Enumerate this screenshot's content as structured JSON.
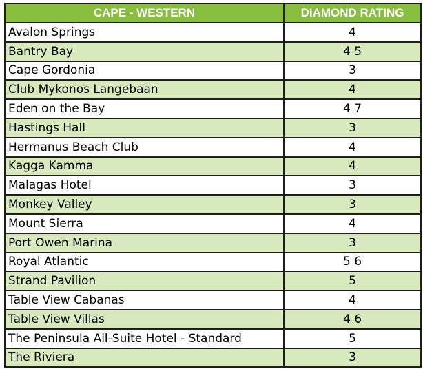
{
  "table": {
    "headers": [
      "CAPE - WESTERN",
      "DIAMOND RATING"
    ],
    "rows": [
      {
        "name": "Avalon Springs",
        "rating": "4"
      },
      {
        "name": "Bantry Bay",
        "rating": "4 5"
      },
      {
        "name": "Cape Gordonia",
        "rating": "3"
      },
      {
        "name": "Club Mykonos Langebaan",
        "rating": "4"
      },
      {
        "name": "Eden on the Bay",
        "rating": "4 7"
      },
      {
        "name": "Hastings Hall",
        "rating": "3"
      },
      {
        "name": "Hermanus Beach Club",
        "rating": "4"
      },
      {
        "name": "Kagga Kamma",
        "rating": "4"
      },
      {
        "name": "Malagas Hotel",
        "rating": "3"
      },
      {
        "name": "Monkey Valley",
        "rating": "3"
      },
      {
        "name": "Mount Sierra",
        "rating": "4"
      },
      {
        "name": "Port Owen Marina",
        "rating": "3"
      },
      {
        "name": "Royal Atlantic",
        "rating": "5 6"
      },
      {
        "name": "Strand Pavilion",
        "rating": "5"
      },
      {
        "name": "Table View Cabanas",
        "rating": "4"
      },
      {
        "name": "Table View Villas",
        "rating": "4 6"
      },
      {
        "name": "The Peninsula All-Suite Hotel - Standard",
        "rating": "5"
      },
      {
        "name": "The Riviera",
        "rating": "3"
      }
    ]
  },
  "colors": {
    "header_bg": "#89bd3e",
    "header_text": "#ffffff",
    "alt_row_bg": "#d9e9be",
    "row_bg": "#ffffff",
    "border": "#1e1e1e"
  }
}
